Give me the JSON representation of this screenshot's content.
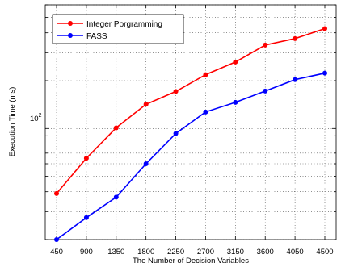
{
  "chart_data": {
    "type": "line",
    "xlabel": "The Number of Decision Variables",
    "ylabel": "Execution Time (ms)",
    "x": [
      450,
      900,
      1350,
      1800,
      2250,
      2700,
      3150,
      3600,
      4050,
      4500
    ],
    "x_tick_labels": [
      "450",
      "900",
      "1350",
      "1800",
      "2250",
      "2700",
      "3150",
      "3600",
      "4050",
      "4500"
    ],
    "y_scale": "log",
    "ylim": [
      20,
      600
    ],
    "y_tick_label": {
      "base": "10",
      "exponent": "2"
    },
    "grid": true,
    "legend_position": "top-left",
    "series": [
      {
        "name": "Integer Porgramming",
        "color": "#ff0000",
        "marker": "circle",
        "values": [
          39,
          65,
          101,
          142,
          171,
          218,
          262,
          335,
          368,
          425
        ]
      },
      {
        "name": "FASS",
        "color": "#0000ff",
        "marker": "circle",
        "values": [
          20,
          27.5,
          37,
          60,
          93,
          127,
          146,
          172,
          203,
          223
        ]
      }
    ]
  }
}
